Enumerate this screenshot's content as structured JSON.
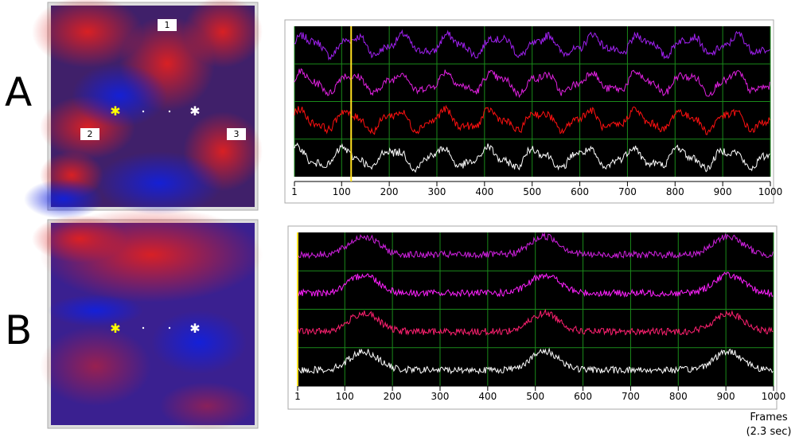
{
  "panels": [
    {
      "label": "A",
      "map_labels": [
        "1",
        "2",
        "3"
      ],
      "xlim": [
        1,
        1000
      ],
      "xticks": [
        1,
        100,
        200,
        300,
        400,
        500,
        600,
        700,
        800,
        900,
        1000
      ],
      "cursor_frame": 120
    },
    {
      "label": "B",
      "xlim": [
        1,
        1000
      ],
      "xticks": [
        1,
        100,
        200,
        300,
        400,
        500,
        600,
        700,
        800,
        900,
        1000
      ],
      "cursor_frame": 1
    }
  ],
  "x_label": "Frames",
  "x_unit": "(2.3 sec)"
}
